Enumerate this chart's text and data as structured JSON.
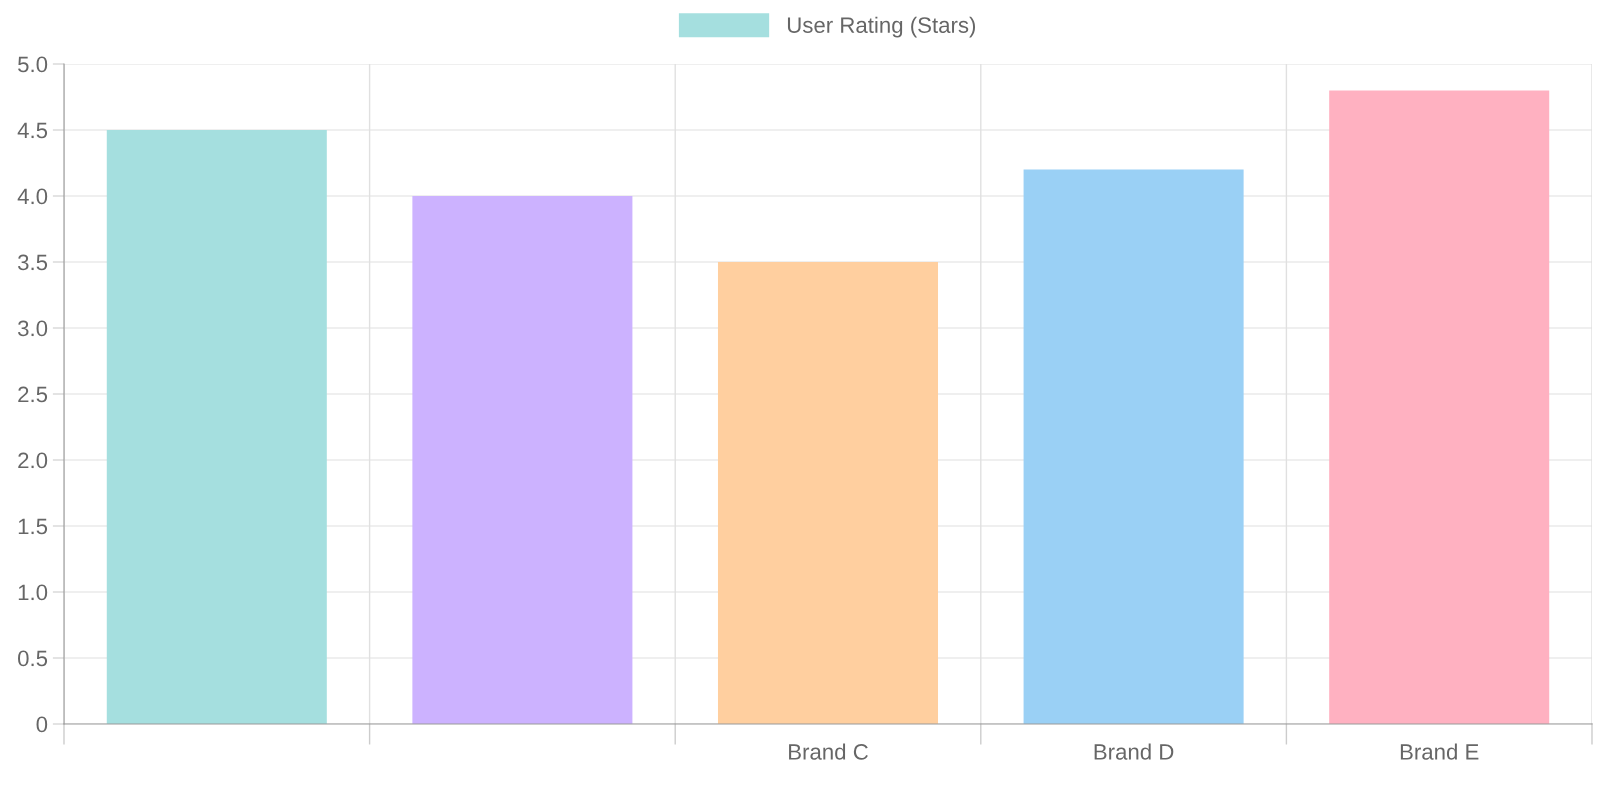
{
  "chart_data": {
    "type": "bar",
    "categories": [
      null,
      null,
      "Brand C",
      "Brand D",
      "Brand E"
    ],
    "series": [
      {
        "name": "User Rating (Stars)",
        "color": "#a5dfdf",
        "colors": [
          "#a5dfdf",
          "#ccb2ff",
          "#ffcf9f",
          "#9ad0f5",
          "#ffb1c1"
        ],
        "values": [
          4.5,
          4.0,
          3.5,
          4.2,
          4.8
        ]
      }
    ],
    "ylim": [
      0,
      5
    ],
    "yticks": [
      0,
      {
        "value": 0.5,
        "label": "0.5"
      },
      {
        "value": 1,
        "label": "1.0"
      },
      {
        "value": 1.5,
        "label": "1.5"
      },
      {
        "value": 2,
        "label": "2.0"
      },
      {
        "value": 2.5,
        "label": "2.5"
      },
      {
        "value": 3,
        "label": "3.0"
      },
      {
        "value": 3.5,
        "label": "3.5"
      },
      {
        "value": 4,
        "label": "4.0"
      },
      {
        "value": 4.5,
        "label": "4.5"
      },
      {
        "value": 5,
        "label": "5.0"
      }
    ],
    "grid": true,
    "legend": "top"
  }
}
